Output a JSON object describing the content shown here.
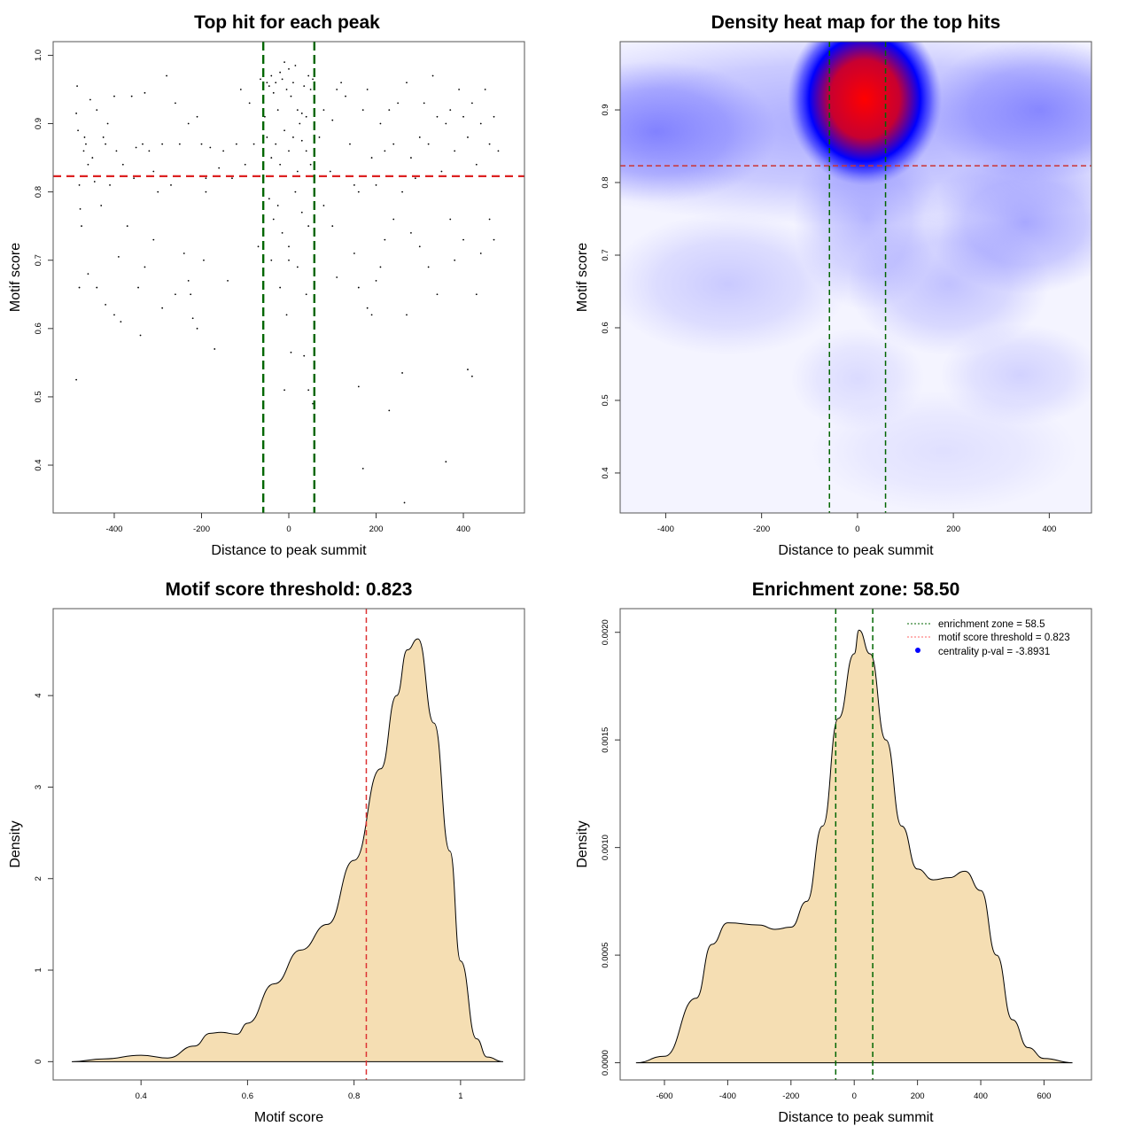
{
  "chart_data": [
    {
      "type": "scatter",
      "title": "Top hit for each peak",
      "xlabel": "Distance to peak summit",
      "ylabel": "Motif score",
      "xlim": [
        -540,
        540
      ],
      "ylim": [
        0.33,
        1.02
      ],
      "xticks": [
        -400,
        -200,
        0,
        200,
        400
      ],
      "yticks": [
        0.4,
        0.5,
        0.6,
        0.7,
        0.8,
        0.9,
        1.0
      ],
      "hlines": [
        {
          "y": 0.823,
          "color": "#dd2222"
        }
      ],
      "vlines": [
        {
          "x": -58.5,
          "color": "#006600"
        },
        {
          "x": 58.5,
          "color": "#006600"
        }
      ],
      "points": [
        [
          -487,
          0.915
        ],
        [
          -485,
          0.955
        ],
        [
          -483,
          0.89
        ],
        [
          -480,
          0.81
        ],
        [
          -478,
          0.775
        ],
        [
          -475,
          0.75
        ],
        [
          -470,
          0.86
        ],
        [
          -468,
          0.88
        ],
        [
          -465,
          0.87
        ],
        [
          -460,
          0.84
        ],
        [
          -455,
          0.935
        ],
        [
          -450,
          0.85
        ],
        [
          -445,
          0.815
        ],
        [
          -440,
          0.92
        ],
        [
          -430,
          0.78
        ],
        [
          -425,
          0.88
        ],
        [
          -420,
          0.87
        ],
        [
          -415,
          0.9
        ],
        [
          -410,
          0.81
        ],
        [
          -400,
          0.94
        ],
        [
          -395,
          0.86
        ],
        [
          -390,
          0.705
        ],
        [
          -385,
          0.61
        ],
        [
          -380,
          0.84
        ],
        [
          -370,
          0.75
        ],
        [
          -360,
          0.94
        ],
        [
          -355,
          0.82
        ],
        [
          -350,
          0.865
        ],
        [
          -345,
          0.66
        ],
        [
          -340,
          0.59
        ],
        [
          -335,
          0.87
        ],
        [
          -330,
          0.945
        ],
        [
          -320,
          0.86
        ],
        [
          -310,
          0.83
        ],
        [
          -300,
          0.8
        ],
        [
          -290,
          0.87
        ],
        [
          -280,
          0.97
        ],
        [
          -270,
          0.81
        ],
        [
          -260,
          0.93
        ],
        [
          -250,
          0.87
        ],
        [
          -240,
          0.71
        ],
        [
          -230,
          0.9
        ],
        [
          -225,
          0.65
        ],
        [
          -220,
          0.615
        ],
        [
          -210,
          0.91
        ],
        [
          -200,
          0.87
        ],
        [
          -195,
          0.7
        ],
        [
          -190,
          0.8
        ],
        [
          -180,
          0.865
        ],
        [
          -170,
          0.57
        ],
        [
          -160,
          0.835
        ],
        [
          -150,
          0.86
        ],
        [
          -140,
          0.67
        ],
        [
          -130,
          0.82
        ],
        [
          -120,
          0.87
        ],
        [
          -110,
          0.95
        ],
        [
          -100,
          0.84
        ],
        [
          -90,
          0.93
        ],
        [
          -80,
          0.87
        ],
        [
          -70,
          0.72
        ],
        [
          -65,
          0.965
        ],
        [
          -487,
          0.525
        ],
        [
          -480,
          0.66
        ],
        [
          -460,
          0.68
        ],
        [
          -440,
          0.66
        ],
        [
          -420,
          0.635
        ],
        [
          -400,
          0.62
        ],
        [
          -330,
          0.69
        ],
        [
          -310,
          0.73
        ],
        [
          -290,
          0.63
        ],
        [
          -260,
          0.65
        ],
        [
          -230,
          0.67
        ],
        [
          -210,
          0.6
        ],
        [
          -190,
          0.82
        ],
        [
          -50,
          0.96
        ],
        [
          -45,
          0.955
        ],
        [
          -40,
          0.97
        ],
        [
          -35,
          0.945
        ],
        [
          -30,
          0.96
        ],
        [
          -25,
          0.92
        ],
        [
          -20,
          0.975
        ],
        [
          -15,
          0.965
        ],
        [
          -10,
          0.99
        ],
        [
          -5,
          0.95
        ],
        [
          0,
          0.98
        ],
        [
          5,
          0.94
        ],
        [
          10,
          0.96
        ],
        [
          15,
          0.985
        ],
        [
          20,
          0.92
        ],
        [
          25,
          0.9
        ],
        [
          30,
          0.915
        ],
        [
          35,
          0.955
        ],
        [
          40,
          0.91
        ],
        [
          45,
          0.97
        ],
        [
          50,
          0.95
        ],
        [
          55,
          0.965
        ],
        [
          -55,
          0.91
        ],
        [
          -50,
          0.88
        ],
        [
          -40,
          0.85
        ],
        [
          -30,
          0.87
        ],
        [
          -20,
          0.84
        ],
        [
          -10,
          0.89
        ],
        [
          0,
          0.86
        ],
        [
          10,
          0.88
        ],
        [
          20,
          0.83
        ],
        [
          30,
          0.875
        ],
        [
          40,
          0.86
        ],
        [
          50,
          0.84
        ],
        [
          -45,
          0.79
        ],
        [
          -35,
          0.76
        ],
        [
          -25,
          0.78
        ],
        [
          -15,
          0.74
        ],
        [
          0,
          0.72
        ],
        [
          15,
          0.8
        ],
        [
          30,
          0.77
        ],
        [
          45,
          0.75
        ],
        [
          -40,
          0.7
        ],
        [
          -20,
          0.66
        ],
        [
          0,
          0.7
        ],
        [
          20,
          0.69
        ],
        [
          40,
          0.65
        ],
        [
          -5,
          0.62
        ],
        [
          5,
          0.565
        ],
        [
          35,
          0.56
        ],
        [
          45,
          0.51
        ],
        [
          -10,
          0.51
        ],
        [
          55,
          0.49
        ],
        [
          70,
          0.88
        ],
        [
          80,
          0.92
        ],
        [
          95,
          0.83
        ],
        [
          100,
          0.905
        ],
        [
          110,
          0.95
        ],
        [
          120,
          0.96
        ],
        [
          130,
          0.94
        ],
        [
          140,
          0.87
        ],
        [
          150,
          0.81
        ],
        [
          160,
          0.8
        ],
        [
          170,
          0.92
        ],
        [
          180,
          0.95
        ],
        [
          190,
          0.85
        ],
        [
          200,
          0.81
        ],
        [
          210,
          0.9
        ],
        [
          220,
          0.86
        ],
        [
          230,
          0.92
        ],
        [
          240,
          0.87
        ],
        [
          250,
          0.93
        ],
        [
          260,
          0.8
        ],
        [
          270,
          0.96
        ],
        [
          280,
          0.85
        ],
        [
          290,
          0.82
        ],
        [
          300,
          0.88
        ],
        [
          310,
          0.93
        ],
        [
          320,
          0.87
        ],
        [
          330,
          0.97
        ],
        [
          340,
          0.91
        ],
        [
          350,
          0.83
        ],
        [
          360,
          0.9
        ],
        [
          370,
          0.92
        ],
        [
          380,
          0.86
        ],
        [
          390,
          0.95
        ],
        [
          400,
          0.91
        ],
        [
          410,
          0.88
        ],
        [
          420,
          0.93
        ],
        [
          430,
          0.84
        ],
        [
          440,
          0.9
        ],
        [
          450,
          0.95
        ],
        [
          460,
          0.87
        ],
        [
          470,
          0.91
        ],
        [
          480,
          0.86
        ],
        [
          80,
          0.78
        ],
        [
          100,
          0.75
        ],
        [
          110,
          0.675
        ],
        [
          150,
          0.71
        ],
        [
          160,
          0.66
        ],
        [
          170,
          0.395
        ],
        [
          180,
          0.63
        ],
        [
          190,
          0.62
        ],
        [
          200,
          0.67
        ],
        [
          210,
          0.69
        ],
        [
          220,
          0.73
        ],
        [
          230,
          0.48
        ],
        [
          240,
          0.76
        ],
        [
          260,
          0.535
        ],
        [
          270,
          0.62
        ],
        [
          280,
          0.74
        ],
        [
          300,
          0.72
        ],
        [
          320,
          0.69
        ],
        [
          340,
          0.65
        ],
        [
          360,
          0.405
        ],
        [
          370,
          0.76
        ],
        [
          380,
          0.7
        ],
        [
          400,
          0.73
        ],
        [
          410,
          0.54
        ],
        [
          420,
          0.53
        ],
        [
          430,
          0.65
        ],
        [
          440,
          0.71
        ],
        [
          460,
          0.76
        ],
        [
          470,
          0.73
        ],
        [
          265,
          0.345
        ],
        [
          160,
          0.515
        ]
      ]
    },
    {
      "type": "heatmap",
      "title": "Density heat map for the top hits",
      "xlabel": "Distance to peak summit",
      "ylabel": "Motif score",
      "xlim": [
        -495,
        488
      ],
      "ylim": [
        0.345,
        0.994
      ],
      "xticks": [
        -400,
        -200,
        0,
        200,
        400
      ],
      "yticks": [
        0.4,
        0.5,
        0.6,
        0.7,
        0.8,
        0.9
      ],
      "colors": [
        "#ffffff",
        "#0000ff",
        "#ff0000"
      ],
      "hlines": [
        {
          "y": 0.823,
          "color": "#cc3333"
        }
      ],
      "vlines": [
        {
          "x": -58.5,
          "color": "#006600"
        },
        {
          "x": 58.5,
          "color": "#006600"
        }
      ],
      "density_peaks": [
        {
          "x": 0,
          "y": 0.88,
          "sx": 600,
          "sy": 0.1,
          "level": 0.45
        },
        {
          "x": -420,
          "y": 0.87,
          "sx": 180,
          "sy": 0.07,
          "level": 0.55
        },
        {
          "x": 380,
          "y": 0.9,
          "sx": 170,
          "sy": 0.07,
          "level": 0.5
        },
        {
          "x": 350,
          "y": 0.745,
          "sx": 150,
          "sy": 0.07,
          "level": 0.45
        },
        {
          "x": -270,
          "y": 0.66,
          "sx": 180,
          "sy": 0.07,
          "level": 0.25
        },
        {
          "x": 190,
          "y": 0.66,
          "sx": 150,
          "sy": 0.07,
          "level": 0.3
        },
        {
          "x": 20,
          "y": 0.75,
          "sx": 110,
          "sy": 0.09,
          "level": 0.35
        },
        {
          "x": 340,
          "y": 0.535,
          "sx": 120,
          "sy": 0.05,
          "level": 0.2
        },
        {
          "x": 0,
          "y": 0.53,
          "sx": 100,
          "sy": 0.05,
          "level": 0.15
        },
        {
          "x": 180,
          "y": 0.43,
          "sx": 200,
          "sy": 0.06,
          "level": 0.12
        },
        {
          "x": 15,
          "y": 0.915,
          "sx": 115,
          "sy": 0.085,
          "level": 1.0
        }
      ]
    },
    {
      "type": "area",
      "title": "Motif score threshold: 0.823",
      "xlabel": "Motif score",
      "ylabel": "Density",
      "xlim": [
        0.235,
        1.12
      ],
      "ylim": [
        -0.2,
        4.95
      ],
      "xticks": [
        0.4,
        0.6,
        0.8,
        1.0
      ],
      "yticks": [
        0,
        1,
        2,
        3,
        4
      ],
      "fill": "#f5deb3",
      "vlines": [
        {
          "x": 0.823,
          "color": "#dd3333"
        }
      ],
      "x": [
        0.27,
        0.33,
        0.4,
        0.45,
        0.5,
        0.53,
        0.55,
        0.58,
        0.6,
        0.65,
        0.7,
        0.75,
        0.8,
        0.85,
        0.88,
        0.9,
        0.92,
        0.95,
        0.98,
        1.0,
        1.03,
        1.05,
        1.08
      ],
      "y": [
        0,
        0.03,
        0.07,
        0.04,
        0.17,
        0.31,
        0.32,
        0.3,
        0.42,
        0.85,
        1.22,
        1.5,
        2.2,
        3.2,
        4.0,
        4.5,
        4.62,
        3.7,
        2.3,
        1.1,
        0.25,
        0.05,
        0
      ]
    },
    {
      "type": "area",
      "title": "Enrichment zone: 58.50",
      "xlabel": "Distance to peak summit",
      "ylabel": "Density",
      "xlim": [
        -740,
        750
      ],
      "ylim": [
        -8e-05,
        0.00211
      ],
      "xticks": [
        -600,
        -400,
        -200,
        0,
        200,
        400,
        600
      ],
      "yticks": [
        0.0,
        0.0005,
        0.001,
        0.0015,
        0.002
      ],
      "ytick_labels": [
        "0.0000",
        "0.0005",
        "0.0010",
        "0.0015",
        "0.0020"
      ],
      "fill": "#f5deb3",
      "vlines": [
        {
          "x": -58.5,
          "color": "#006600"
        },
        {
          "x": 58.5,
          "color": "#006600"
        }
      ],
      "x": [
        -690,
        -600,
        -500,
        -450,
        -400,
        -300,
        -250,
        -200,
        -150,
        -100,
        -50,
        0,
        15,
        50,
        100,
        150,
        200,
        250,
        300,
        350,
        400,
        450,
        500,
        550,
        600,
        690
      ],
      "y": [
        0,
        3e-05,
        0.0003,
        0.00055,
        0.00065,
        0.00064,
        0.00062,
        0.00063,
        0.00075,
        0.0011,
        0.0016,
        0.0019,
        0.00201,
        0.0019,
        0.0015,
        0.0011,
        0.0009,
        0.00085,
        0.00086,
        0.00089,
        0.0008,
        0.0005,
        0.0002,
        7e-05,
        2e-05,
        0
      ],
      "legend": {
        "placement": "top-right",
        "entries": [
          {
            "label": "enrichment zone = 58.5",
            "color": "#006600",
            "style": "dotted-line"
          },
          {
            "label": "motif score threshold = 0.823",
            "color": "#ff6666",
            "style": "dotted-line"
          },
          {
            "label": "centrality p-val = -3.8931",
            "color": "#0000ff",
            "style": "point"
          }
        ]
      }
    }
  ]
}
